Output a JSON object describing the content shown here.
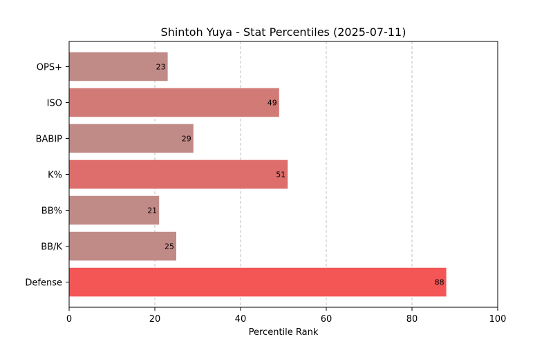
{
  "chart_data": {
    "type": "bar",
    "orientation": "horizontal",
    "title": "Shintoh Yuya - Stat Percentiles (2025-07-11)",
    "xlabel": "Percentile Rank",
    "ylabel": "",
    "xlim": [
      0,
      100
    ],
    "xticks": [
      "0",
      "20",
      "40",
      "60",
      "80",
      "100"
    ],
    "grid": "x-dashed",
    "categories": [
      "OPS+",
      "ISO",
      "BABIP",
      "K%",
      "BB%",
      "BB/K",
      "Defense"
    ],
    "values": [
      23,
      49,
      29,
      51,
      21,
      25,
      88
    ],
    "colors": [
      "#c08a87",
      "#d27a76",
      "#c08a87",
      "#dd6e6b",
      "#c08a87",
      "#c08a87",
      "#f45656"
    ]
  }
}
